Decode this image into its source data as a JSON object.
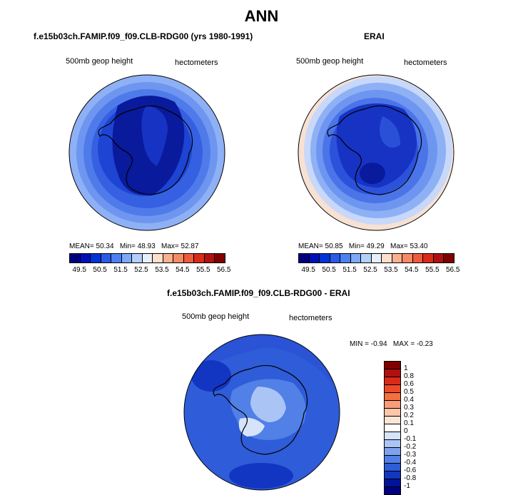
{
  "title": "ANN",
  "panels": [
    {
      "title": "f.e15b03ch.FAMIP.f09_f09.CLB-RDG00 (yrs 1980-1991)",
      "left_label": "500mb geop height",
      "right_label": "hectometers",
      "stats": {
        "mean_label": "MEAN=",
        "mean": "50.34",
        "min_label": "Min=",
        "min": "48.93",
        "max_label": "Max=",
        "max": "52.87"
      }
    },
    {
      "title": "ERAI",
      "left_label": "500mb geop height",
      "right_label": "hectometers",
      "stats": {
        "mean_label": "MEAN=",
        "mean": "50.85",
        "min_label": "Min=",
        "min": "49.29",
        "max_label": "Max=",
        "max": "53.40"
      }
    },
    {
      "title": "f.e15b03ch.FAMIP.f09_f09.CLB-RDG00 - ERAI",
      "left_label": "500mb geop height",
      "right_label": "hectometers",
      "stats": {
        "min_label": "MIN =",
        "min": "-0.94",
        "max_label": "MAX =",
        "max": "-0.23"
      }
    }
  ],
  "horizontal_colorbar": {
    "colors": [
      "#00007f",
      "#0010b8",
      "#0032d6",
      "#2a5ae8",
      "#4d80f2",
      "#7ea8f8",
      "#b3d0fb",
      "#e5f0fb",
      "#fde0cc",
      "#f9b08f",
      "#f58a66",
      "#ee5b3d",
      "#d92a1a",
      "#b01010",
      "#800000"
    ],
    "labels": [
      "49.5",
      "50.5",
      "51.5",
      "52.5",
      "53.5",
      "54.5",
      "55.5",
      "56.5"
    ]
  },
  "vertical_colorbar": {
    "colors": [
      "#800000",
      "#b01010",
      "#d92a1a",
      "#ee4a2a",
      "#f5703f",
      "#f99c7a",
      "#fbc6aa",
      "#fde5d5",
      "#ffffff",
      "#d6e4fb",
      "#aac4f6",
      "#7fa2ee",
      "#5180e6",
      "#2f5cd8",
      "#1236c2",
      "#001499",
      "#00007f"
    ],
    "labels": [
      "1",
      "0.8",
      "0.6",
      "0.5",
      "0.4",
      "0.3",
      "0.2",
      "0.1",
      "0",
      "-0.1",
      "-0.2",
      "-0.3",
      "-0.4",
      "-0.6",
      "-0.8",
      "-1"
    ]
  },
  "colors": {
    "deep_blue": "#1a2fd6",
    "navy": "#0a1a9c",
    "light_blue": "#b8cdf5",
    "ring_outer": "#a9c2f5"
  }
}
